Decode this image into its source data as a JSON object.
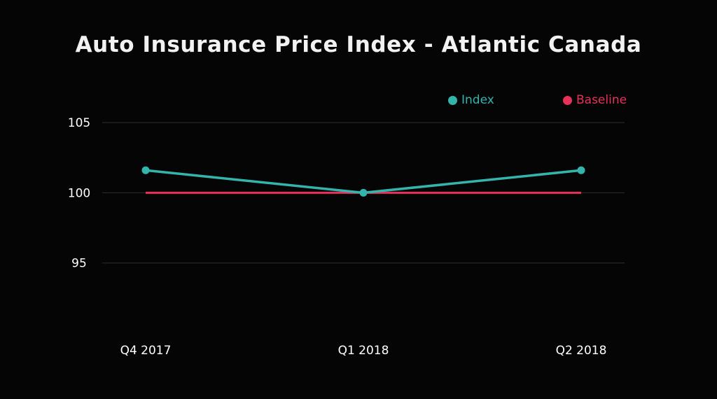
{
  "chart_data": {
    "type": "line",
    "title": "Auto Insurance Price Index - Atlantic Canada",
    "categories": [
      "Q4 2017",
      "Q1 2018",
      "Q2 2018"
    ],
    "series": [
      {
        "name": "Index",
        "values": [
          101.6,
          100.0,
          101.6
        ],
        "color": "#33b5ae"
      },
      {
        "name": "Baseline",
        "values": [
          100,
          100,
          100
        ],
        "color": "#e8315a"
      }
    ],
    "yticks": [
      95,
      100,
      105
    ],
    "ylim": [
      90,
      106.5
    ],
    "grid": true,
    "legend_position": "top-right"
  }
}
